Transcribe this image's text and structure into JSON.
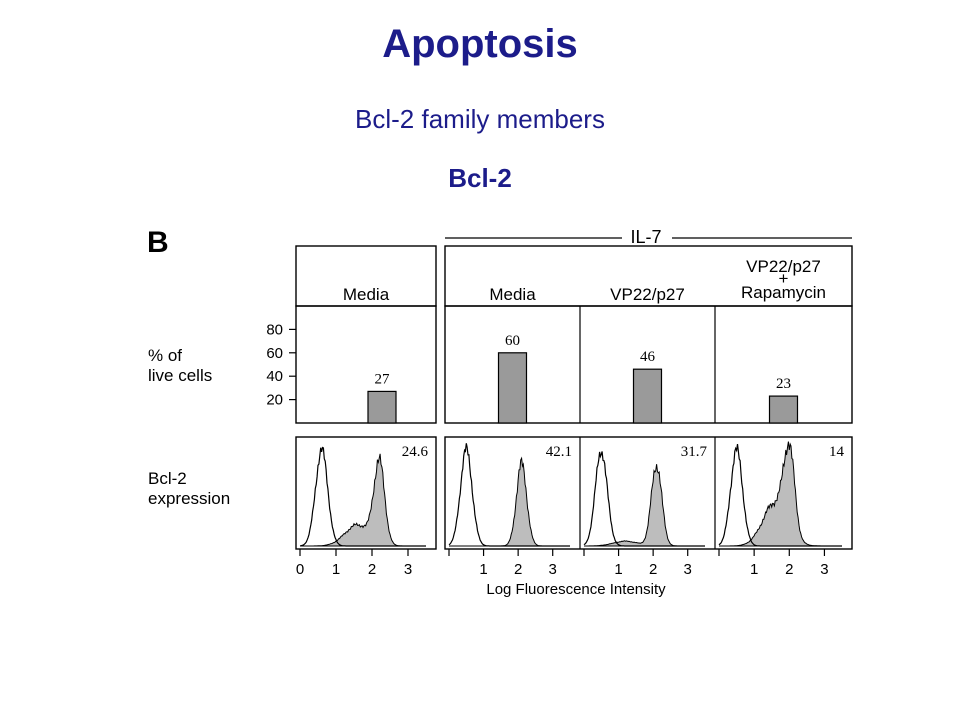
{
  "slide": {
    "title": "Apoptosis",
    "subtitle": "Bcl-2 family members",
    "heading": "Bcl-2"
  },
  "colors": {
    "title": "#1c1c8a",
    "bar_fill": "#9a9a9a",
    "hist_fill": "#bdbdbd"
  },
  "figure": {
    "panel_letter": "B",
    "group_label": "IL-7",
    "conditions": [
      "Media",
      "Media",
      "VP22/p27",
      "VP22/p27\n+\nRapamycin"
    ],
    "bar_ylabel": "% of\nlive cells",
    "hist_ylabel": "Bcl-2\nexpression",
    "xlabel": "Log Fluorescence Intensity"
  },
  "chart_data": [
    {
      "type": "bar",
      "categories": [
        "Media",
        "Media",
        "VP22/p27",
        "VP22/p27 + Rapamycin"
      ],
      "values": [
        27,
        60,
        46,
        23
      ],
      "data_labels": [
        "27",
        "60",
        "46",
        "23"
      ],
      "ylabel": "% of live cells",
      "yticks": [
        20,
        40,
        60,
        80
      ],
      "ylim": [
        0,
        100
      ]
    },
    {
      "type": "area",
      "xlabel": "Log Fluorescence Intensity",
      "xticks": [
        0,
        1,
        2,
        3
      ],
      "xlim": [
        0,
        3.5
      ],
      "ylabel": "Bcl-2 expression",
      "panels": [
        {
          "label": "24.6",
          "open_peak": 0.6,
          "filled_peak": 2.2,
          "shoulder": 1.6,
          "shoulder_level": 0.22
        },
        {
          "label": "42.1",
          "open_peak": 0.5,
          "filled_peak": 2.1,
          "shoulder": 1.5,
          "shoulder_level": 0.0
        },
        {
          "label": "31.7",
          "open_peak": 0.5,
          "filled_peak": 2.1,
          "shoulder": 1.2,
          "shoulder_level": 0.05
        },
        {
          "label": "14",
          "open_peak": 0.5,
          "filled_peak": 2.0,
          "shoulder": 1.6,
          "shoulder_level": 0.45
        }
      ]
    }
  ]
}
